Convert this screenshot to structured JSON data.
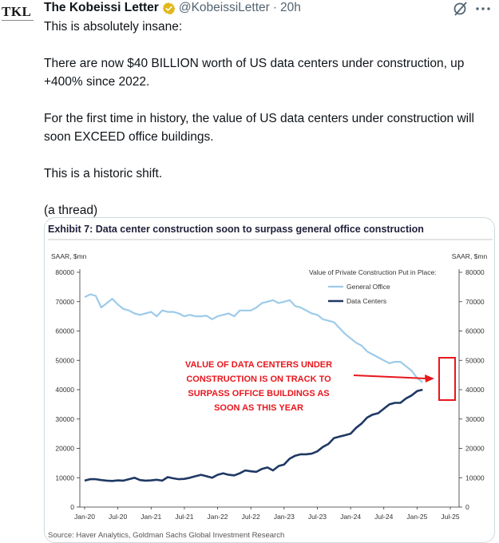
{
  "author": {
    "avatar_text": "TKL",
    "name": "The Kobeissi Letter",
    "handle": "@KobeissiLetter",
    "separator": "·",
    "time": "20h",
    "verified_color": "#e2b719"
  },
  "actions": {
    "grok_icon": "grok-icon",
    "more_icon": "more-icon"
  },
  "tweet": {
    "line1": "This is absolutely insane:",
    "line2": "There are now $40 BILLION worth of US data centers under construction, up +400% since 2022.",
    "line3": "For the first time in history, the value of US data centers under construction will soon EXCEED office buildings.",
    "line4": "This is a historic shift.",
    "line5": "(a thread)"
  },
  "chart_data": {
    "type": "line",
    "title": "Exhibit 7: Data center construction soon to surpass general office construction",
    "ylabel_left": "SAAR, $mn",
    "ylabel_right": "SAAR, $mn",
    "ylim": [
      0,
      80000
    ],
    "y_ticks": [
      "0",
      "10000",
      "20000",
      "30000",
      "40000",
      "50000",
      "60000",
      "70000",
      "80000"
    ],
    "x_ticks": [
      "Jan-20",
      "Jul-20",
      "Jan-21",
      "Jul-21",
      "Jan-22",
      "Jul-22",
      "Jan-23",
      "Jul-23",
      "Jan-24",
      "Jul-24",
      "Jan-25",
      "Jul-25"
    ],
    "legend_title": "Value of Private Construction Put in Place:",
    "legend_position": "top-right",
    "grid": false,
    "series": [
      {
        "name": "General Office",
        "color": "#9dcbea",
        "values": [
          71500,
          72500,
          72000,
          68000,
          69500,
          71000,
          69000,
          67500,
          67000,
          66000,
          65500,
          66000,
          66500,
          65000,
          67000,
          66500,
          66500,
          66000,
          65000,
          65500,
          65000,
          65000,
          65200,
          64000,
          65000,
          65500,
          66000,
          65000,
          67000,
          67000,
          67000,
          68000,
          69500,
          70000,
          70500,
          69500,
          70000,
          70500,
          68500,
          68000,
          67000,
          66000,
          65500,
          64000,
          63500,
          63000,
          61000,
          59000,
          57500,
          56000,
          55000,
          53000,
          52000,
          51000,
          50000,
          49000,
          49500,
          49500,
          48000,
          46500,
          44000,
          42500
        ]
      },
      {
        "name": "Data Centers",
        "color": "#1f3864",
        "values": [
          9000,
          9500,
          9500,
          9200,
          9000,
          8900,
          9100,
          9000,
          9500,
          10000,
          9200,
          9000,
          9100,
          9300,
          9000,
          10200,
          9800,
          9500,
          9600,
          10000,
          10500,
          11000,
          10500,
          10000,
          11000,
          11500,
          11000,
          10800,
          11500,
          12500,
          12200,
          12000,
          13000,
          13500,
          12500,
          14000,
          14500,
          16500,
          17500,
          18000,
          18000,
          18200,
          19000,
          20500,
          21500,
          23500,
          24000,
          24500,
          25000,
          27000,
          28500,
          30500,
          31500,
          32000,
          33500,
          35000,
          35500,
          35500,
          37000,
          38000,
          39500,
          40000
        ]
      }
    ],
    "annotation": "VALUE OF DATA CENTERS UNDER CONSTRUCTION IS ON TRACK TO SURPASS OFFICE BUILDINGS AS SOON AS THIS YEAR",
    "annotation_lines": [
      "VALUE OF DATA CENTERS UNDER",
      "CONSTRUCTION IS ON TRACK TO",
      "SURPASS OFFICE BUILDINGS AS",
      "SOON AS THIS YEAR"
    ],
    "annotation_color": "#e8161d",
    "source": "Source: Haver Analytics, Goldman Sachs Global Investment Research"
  }
}
